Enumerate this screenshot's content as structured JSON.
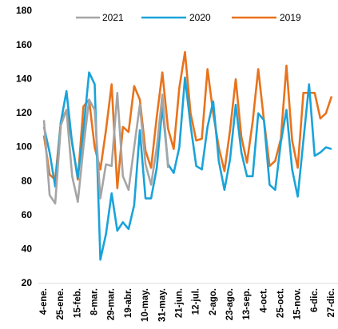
{
  "chart_data": {
    "type": "line",
    "categories": [
      "4-ene.",
      null,
      null,
      "25-ene.",
      null,
      null,
      "15-feb.",
      null,
      null,
      "8-mar.",
      null,
      null,
      "29-mar.",
      null,
      null,
      "19-abr.",
      null,
      null,
      "10-may.",
      null,
      null,
      "31-may.",
      null,
      null,
      "21-jun.",
      null,
      null,
      "12-jul.",
      null,
      null,
      "2-ago.",
      null,
      null,
      "23-ago.",
      null,
      null,
      "13-sep.",
      null,
      null,
      "4-oct.",
      null,
      null,
      "25-oct.",
      null,
      null,
      "15-nov.",
      null,
      null,
      "6-dic.",
      null,
      null,
      "27-dic."
    ],
    "series": [
      {
        "name": "2021",
        "color": "#a5a5a5",
        "values": [
          116,
          72,
          67,
          113,
          122,
          83,
          68,
          100,
          128,
          122,
          70,
          90,
          89,
          132,
          83,
          75,
          100,
          125,
          90,
          78,
          100,
          131,
          88,
          null,
          null,
          null,
          null,
          null,
          null,
          null,
          null,
          null,
          null,
          null,
          null,
          null,
          null,
          null,
          null,
          null,
          null,
          null,
          null,
          null,
          null,
          null,
          null,
          null,
          null,
          null,
          null,
          null
        ]
      },
      {
        "name": "2020",
        "color": "#1aa3d9",
        "values": [
          112,
          97,
          77,
          115,
          133,
          102,
          82,
          110,
          144,
          137,
          34,
          49,
          73,
          51,
          56,
          52,
          66,
          110,
          70,
          70,
          88,
          124,
          90,
          85,
          100,
          141,
          113,
          89,
          87,
          112,
          127,
          92,
          75,
          93,
          125,
          97,
          83,
          83,
          120,
          116,
          78,
          75,
          103,
          122,
          87,
          71,
          104,
          137,
          95,
          97,
          100,
          99
        ]
      },
      {
        "name": "2019",
        "color": "#e8731c",
        "values": [
          107,
          84,
          81,
          115,
          122,
          103,
          81,
          124,
          128,
          100,
          87,
          110,
          137,
          76,
          112,
          109,
          136,
          128,
          98,
          88,
          118,
          144,
          111,
          99,
          135,
          156,
          120,
          104,
          105,
          146,
          120,
          100,
          86,
          110,
          140,
          106,
          91,
          115,
          146,
          116,
          89,
          92,
          105,
          148,
          104,
          88,
          132,
          132,
          132,
          117,
          120,
          130
        ]
      }
    ],
    "ylim": [
      20,
      180
    ],
    "yticks": [
      20,
      40,
      60,
      80,
      100,
      120,
      140,
      160,
      180
    ],
    "legend": "top"
  }
}
